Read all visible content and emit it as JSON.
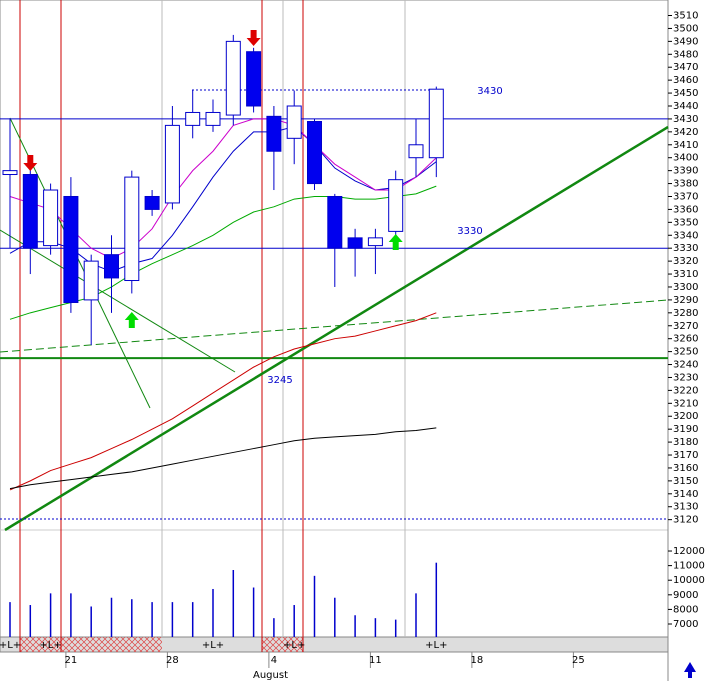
{
  "chart_data": {
    "type": "candlestick",
    "open": [
      3387,
      3387,
      3332,
      3370,
      3290,
      3325,
      3305,
      3370,
      3365,
      3425,
      3425,
      3433,
      3482,
      3432,
      3415,
      3428,
      3370,
      3338,
      3332,
      3343,
      3400,
      3400
    ],
    "high": [
      3430,
      3400,
      3380,
      3385,
      3325,
      3340,
      3390,
      3375,
      3440,
      3452,
      3445,
      3495,
      3485,
      3440,
      3452,
      3430,
      3372,
      3345,
      3345,
      3390,
      3430,
      3455
    ],
    "low": [
      3330,
      3310,
      3325,
      3280,
      3255,
      3280,
      3295,
      3355,
      3360,
      3415,
      3420,
      3425,
      3435,
      3375,
      3395,
      3375,
      3300,
      3308,
      3310,
      3335,
      3385,
      3385
    ],
    "close": [
      3390,
      3330,
      3375,
      3288,
      3320,
      3307,
      3385,
      3360,
      3425,
      3435,
      3435,
      3490,
      3440,
      3405,
      3440,
      3380,
      3330,
      3330,
      3338,
      3383,
      3410,
      3453
    ],
    "series": [
      {
        "color": "#0000cc",
        "values": [
          3326,
          3335,
          3335,
          3330,
          3318,
          3312,
          3318,
          3322,
          3340,
          3362,
          3385,
          3405,
          3420,
          3420,
          3424,
          3410,
          3392,
          3382,
          3375,
          3377,
          3385,
          3397
        ]
      },
      {
        "color": "#cc00cc",
        "values": [
          3370,
          3365,
          3360,
          3345,
          3330,
          3322,
          3330,
          3345,
          3370,
          3390,
          3405,
          3425,
          3430,
          3430,
          3425,
          3410,
          3395,
          3385,
          3375,
          3375,
          3385,
          3400
        ]
      },
      {
        "color": "#00aa00",
        "values": [
          3275,
          3280,
          3284,
          3288,
          3292,
          3300,
          3310,
          3318,
          3325,
          3332,
          3340,
          3350,
          3358,
          3362,
          3368,
          3370,
          3370,
          3368,
          3368,
          3370,
          3372,
          3378
        ]
      },
      {
        "color": "#cc0000",
        "values": [
          3143,
          3150,
          3158,
          3163,
          3168,
          3175,
          3182,
          3190,
          3198,
          3208,
          3218,
          3228,
          3238,
          3246,
          3252,
          3256,
          3260,
          3262,
          3266,
          3270,
          3274,
          3280
        ]
      },
      {
        "color": "#000000",
        "values": [
          3144,
          3147,
          3149,
          3151,
          3153,
          3155,
          3157,
          3160,
          3163,
          3166,
          3169,
          3172,
          3175,
          3178,
          3181,
          3183,
          3184,
          3185,
          3186,
          3188,
          3189,
          3191
        ]
      }
    ],
    "levels": [
      3430,
      3330,
      3245
    ],
    "volume": [
      8500,
      8300,
      9100,
      9100,
      8200,
      8800,
      8700,
      8500,
      8500,
      8500,
      9400,
      10700,
      9500,
      7400,
      8300,
      10300,
      8800,
      7600,
      7400,
      7300,
      9100,
      11200
    ],
    "ylim": [
      3112,
      3522
    ],
    "yticks": [
      3120,
      3130,
      3140,
      3150,
      3160,
      3170,
      3180,
      3190,
      3200,
      3210,
      3220,
      3230,
      3240,
      3250,
      3260,
      3270,
      3280,
      3290,
      3300,
      3310,
      3320,
      3330,
      3340,
      3350,
      3360,
      3370,
      3380,
      3390,
      3400,
      3410,
      3420,
      3430,
      3440,
      3450,
      3460,
      3470,
      3480,
      3490,
      3500,
      3510
    ],
    "vol_ylim": [
      6110,
      13440
    ],
    "vol_yticks": [
      7000,
      8000,
      9000,
      10000,
      11000,
      12000
    ],
    "xticks": [
      {
        "value": 3,
        "label": "21"
      },
      {
        "value": 8,
        "label": "28"
      },
      {
        "value": 13,
        "label": "4"
      },
      {
        "value": 18,
        "label": "11"
      },
      {
        "value": 23,
        "label": "18"
      },
      {
        "value": 28,
        "label": "25"
      }
    ],
    "month_label": "August",
    "strip_labels": [
      {
        "value": 0,
        "label": "+L+"
      },
      {
        "value": 2,
        "label": "+L+"
      },
      {
        "value": 10,
        "label": "+L+"
      },
      {
        "value": 14,
        "label": "+L+"
      },
      {
        "value": 21,
        "label": "+L+"
      }
    ]
  }
}
